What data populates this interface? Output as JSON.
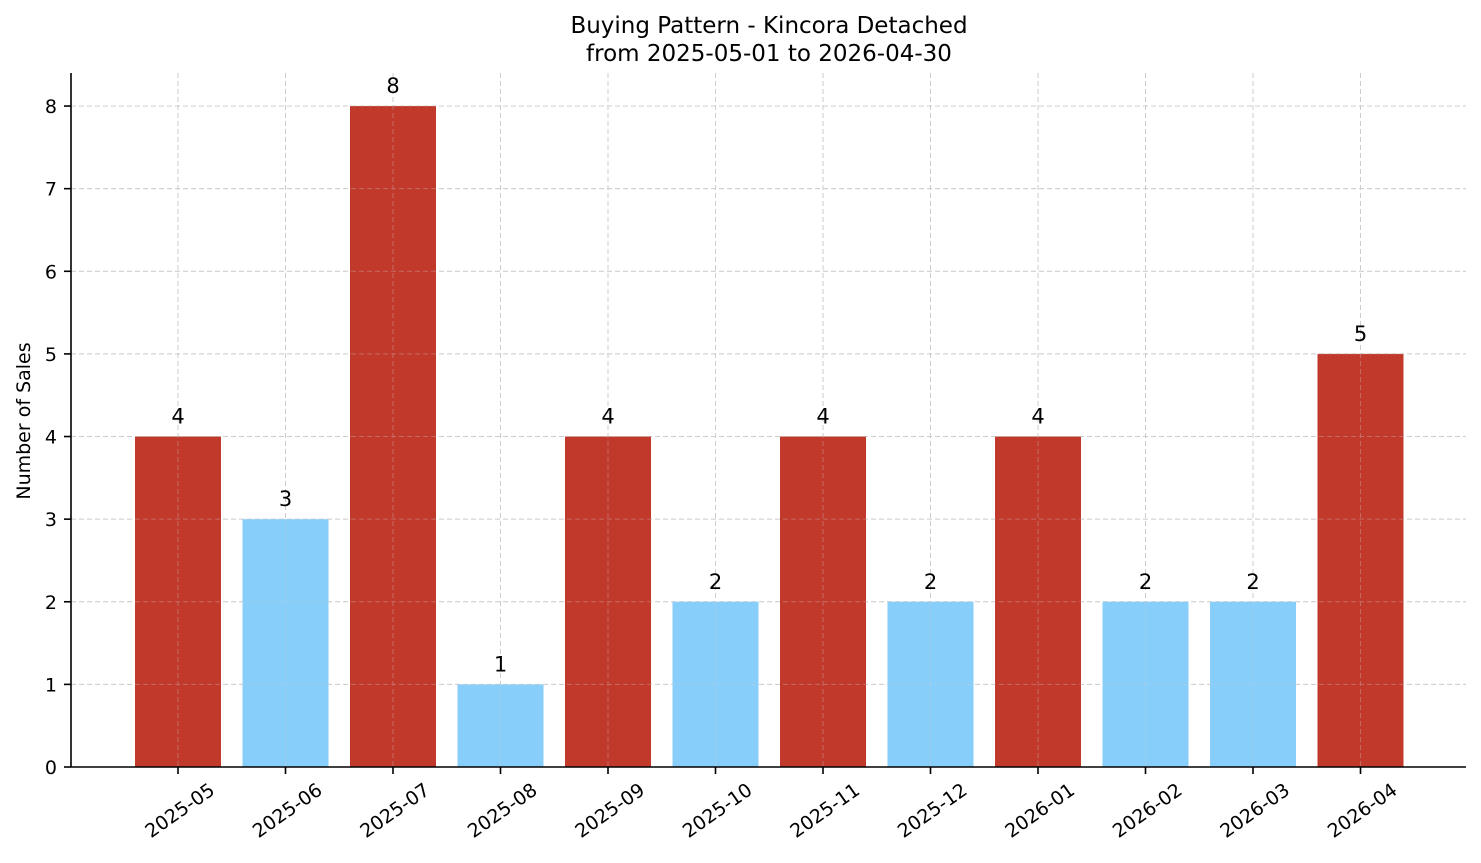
{
  "chart_data": {
    "type": "bar",
    "title": "Buying Pattern - Kincora Detached",
    "subtitle": "from 2025-05-01 to 2026-04-30",
    "xlabel": "",
    "ylabel": "Number of Sales",
    "categories": [
      "2025-05",
      "2025-06",
      "2025-07",
      "2025-08",
      "2025-09",
      "2025-10",
      "2025-11",
      "2025-12",
      "2026-01",
      "2026-02",
      "2026-03",
      "2026-04"
    ],
    "values": [
      4,
      3,
      8,
      1,
      4,
      2,
      4,
      2,
      4,
      2,
      2,
      5
    ],
    "bar_colors": [
      "#c0392b",
      "#87cefa",
      "#c0392b",
      "#87cefa",
      "#c0392b",
      "#87cefa",
      "#c0392b",
      "#87cefa",
      "#c0392b",
      "#87cefa",
      "#87cefa",
      "#c0392b"
    ],
    "ylim": [
      0,
      8.4
    ],
    "yticks": [
      0,
      1,
      2,
      3,
      4,
      5,
      6,
      7,
      8
    ],
    "grid": true,
    "legend": "none"
  }
}
